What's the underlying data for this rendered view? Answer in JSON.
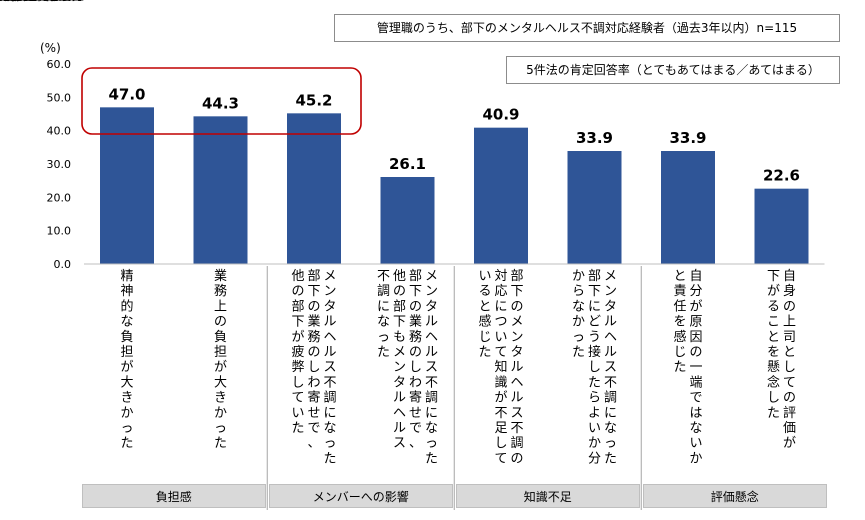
{
  "notes": {
    "sample": "管理職のうち、部下のメンタルヘルス不調対応経験者（過去3年以内）n=115",
    "method": "5件法の肯定回答率（とてもあてはまる／あてはまる）"
  },
  "chart_data": {
    "type": "bar",
    "unit_label": "(%)",
    "ylim": [
      0,
      60
    ],
    "yticks": [
      "60.0",
      "50.0",
      "40.0",
      "30.0",
      "20.0",
      "10.0",
      "0.0"
    ],
    "categories": [
      [
        "精神的な負担が大きかった"
      ],
      [
        "業務上の負担が大きかった"
      ],
      [
        "メンタルヘルス不調になった",
        "部下の業務のしわ寄せで、",
        "他の部下が疲弊していた"
      ],
      [
        "メンタルヘルス不調になった",
        "部下の業務のしわ寄せで、",
        "他の部下もメンタルヘルス",
        "不調になった"
      ],
      [
        "部下のメンタルヘルス不調の",
        "対応について知識が不足して",
        "いると感じた"
      ],
      [
        "メンタルヘルス不調になった",
        "部下にどう接したらよいか分",
        "からなかった"
      ],
      [
        "自分が原因の一端ではないか",
        "と責任を感じた"
      ],
      [
        "自身の上司としての評価が",
        "下がることを懸念した"
      ]
    ],
    "values": [
      47.0,
      44.3,
      45.2,
      26.1,
      40.9,
      33.9,
      33.9,
      22.6
    ],
    "value_labels": [
      "47.0",
      "44.3",
      "45.2",
      "26.1",
      "40.9",
      "33.9",
      "33.9",
      "22.6"
    ],
    "groups": [
      {
        "label": "負担感",
        "members": [
          0,
          1
        ]
      },
      {
        "label": "メンバーへの影響",
        "members": [
          2,
          3
        ]
      },
      {
        "label": "知識不足",
        "members": [
          4,
          5
        ]
      },
      {
        "label": "評価懸念",
        "members": [
          6,
          7
        ]
      }
    ],
    "highlighted": [
      0,
      1,
      2
    ],
    "colors": {
      "bar": "#2f5597",
      "highlight": "#c00000",
      "group_bg": "#d9d9d9"
    }
  }
}
